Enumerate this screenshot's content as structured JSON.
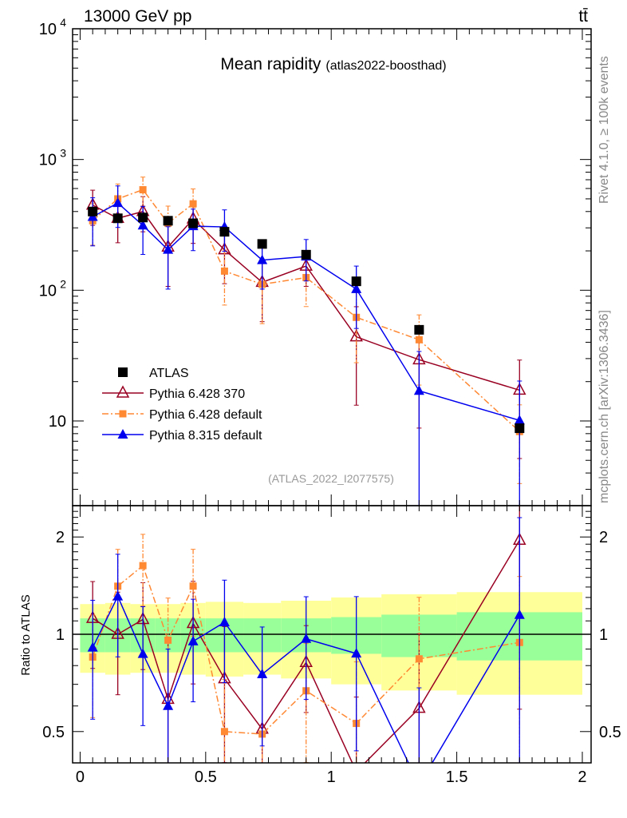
{
  "header": {
    "left": "13000 GeV pp",
    "right": "tt̄"
  },
  "side_labels": {
    "rivet": "Rivet 4.1.0, ≥ 100k events",
    "mcplots": "mcplots.cern.ch [arXiv:1306.3436]"
  },
  "watermark": "(ATLAS_2022_I2077575)",
  "chart_data": {
    "type": "line",
    "title": "Mean rapidity",
    "subtitle": "(atlas2022-boosthad)",
    "xlabel": "",
    "ylabel": "",
    "ratio_ylabel": "Ratio to ATLAS",
    "xlim": [
      -0.03,
      2.035
    ],
    "ylim": [
      2.25,
      10000
    ],
    "yscale": "log",
    "ratio_ylim": [
      0.4,
      2.5
    ],
    "x_ticks": [
      "0",
      "0.5",
      "1",
      "1.5",
      "2"
    ],
    "x_tick_values": [
      0,
      0.5,
      1,
      1.5,
      2
    ],
    "y_ticks": [
      {
        "v": 10000,
        "label": "10",
        "exp": "4"
      },
      {
        "v": 1000,
        "label": "10",
        "exp": "3"
      },
      {
        "v": 100,
        "label": "10",
        "exp": "2"
      },
      {
        "v": 10,
        "label": "10",
        "exp": ""
      }
    ],
    "ratio_ticks": [
      {
        "v": 2,
        "label": "2"
      },
      {
        "v": 1,
        "label": "1"
      },
      {
        "v": 0.5,
        "label": "0.5"
      }
    ],
    "bin_edges": [
      0,
      0.1,
      0.2,
      0.3,
      0.4,
      0.5,
      0.65,
      0.8,
      1.0,
      1.2,
      1.5,
      2.0
    ],
    "x": [
      0.05,
      0.15,
      0.25,
      0.35,
      0.45,
      0.575,
      0.725,
      0.9,
      1.1,
      1.35,
      1.75
    ],
    "band_1sigma": [
      0.12,
      0.12,
      0.12,
      0.12,
      0.12,
      0.12,
      0.12,
      0.12,
      0.13,
      0.15,
      0.17
    ],
    "band_2sigma": [
      0.24,
      0.25,
      0.24,
      0.24,
      0.25,
      0.26,
      0.25,
      0.27,
      0.3,
      0.33,
      0.35
    ],
    "legend_position": "lower-left",
    "series": [
      {
        "name": "ATLAS",
        "color": "#000000",
        "marker": "square",
        "line": "none",
        "values": [
          400,
          355,
          360,
          340,
          325,
          280,
          226,
          187,
          117,
          49.8,
          8.8
        ]
      },
      {
        "name": "Pythia 6.428 370",
        "color": "#990022",
        "marker": "open-triangle",
        "line": "solid",
        "values": [
          448,
          355,
          400,
          214,
          351,
          204,
          115,
          153,
          44,
          29.4,
          17.2
        ],
        "err": [
          0.3,
          0.35,
          0.3,
          0.5,
          0.35,
          0.45,
          0.5,
          0.3,
          0.7,
          0.7,
          0.7
        ]
      },
      {
        "name": "Pythia 6.428 default",
        "color": "#ff8833",
        "marker": "square",
        "line": "dashdot",
        "values": [
          340,
          500,
          587,
          326,
          458,
          140,
          111,
          125,
          62,
          41.8,
          8.3
        ],
        "err": [
          0.35,
          0.3,
          0.25,
          0.35,
          0.3,
          0.45,
          0.5,
          0.4,
          0.55,
          0.55,
          0.6
        ]
      },
      {
        "name": "Pythia 8.315 default",
        "color": "#0000ee",
        "marker": "triangle",
        "line": "solid",
        "values": [
          364,
          465,
          313,
          204,
          309,
          305,
          170,
          181,
          102,
          17,
          10.1
        ],
        "err": [
          0.4,
          0.35,
          0.4,
          0.5,
          0.35,
          0.35,
          0.4,
          0.35,
          0.5,
          1.0,
          1.0
        ]
      }
    ]
  }
}
